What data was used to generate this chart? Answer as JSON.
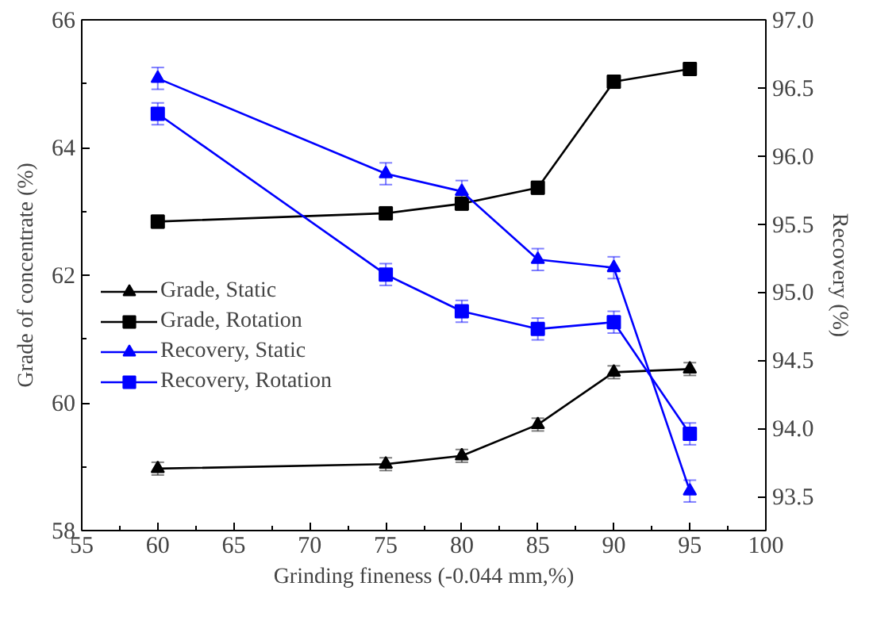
{
  "chart_data": {
    "type": "line",
    "xlabel": "Grinding fineness (-0.044 mm,%)",
    "ylabel": "Grade of concentrate (%)",
    "y2label": "Recovery (%)",
    "x": [
      60,
      75,
      80,
      85,
      90,
      95
    ],
    "xlim": [
      55,
      100
    ],
    "xticks": [
      55,
      60,
      65,
      70,
      75,
      80,
      85,
      90,
      95,
      100
    ],
    "ylim": [
      58,
      66
    ],
    "yticks": [
      58,
      60,
      62,
      64,
      66
    ],
    "y2lim": [
      93.25,
      97.0
    ],
    "y2ticks": [
      {
        "value": 93.5,
        "label": "93.5"
      },
      {
        "value": 94,
        "label": "94.0"
      },
      {
        "value": 94.5,
        "label": "94.5"
      },
      {
        "value": 95,
        "label": "95.0"
      },
      {
        "value": 95.5,
        "label": "95.5"
      },
      {
        "value": 96,
        "label": "96.0"
      },
      {
        "value": 96.5,
        "label": "96.5"
      },
      {
        "value": 97,
        "label": "97.0"
      }
    ],
    "legend": "left",
    "grid": false,
    "line_style": "solid",
    "series": [
      {
        "name": "Grade, Static",
        "color": "#000000",
        "marker": "triangle",
        "values": [
          58.97,
          59.04,
          59.17,
          59.66,
          60.48,
          60.53
        ],
        "errors": [
          0.1,
          0.1,
          0.1,
          0.1,
          0.1,
          0.1
        ]
      },
      {
        "name": "Grade, Rotation",
        "color": "#000000",
        "marker": "square",
        "values": [
          62.84,
          62.97,
          63.12,
          63.37,
          65.03,
          65.23
        ],
        "errors": [
          0.1,
          0.1,
          0.1,
          0.1,
          0.1,
          0.1
        ]
      },
      {
        "name": "Recovery, Static",
        "color": "#0000ff",
        "marker": "triangle",
        "axis": "y2",
        "values": [
          96.57,
          95.87,
          95.74,
          95.24,
          95.18,
          93.54
        ],
        "errors": [
          0.08,
          0.08,
          0.08,
          0.08,
          0.08,
          0.08
        ]
      },
      {
        "name": "Recovery, Rotation",
        "color": "#0000ff",
        "marker": "square",
        "axis": "y2",
        "values": [
          96.31,
          95.13,
          94.86,
          94.73,
          94.78,
          93.96
        ],
        "errors": [
          0.08,
          0.08,
          0.08,
          0.08,
          0.08,
          0.08
        ]
      }
    ]
  }
}
